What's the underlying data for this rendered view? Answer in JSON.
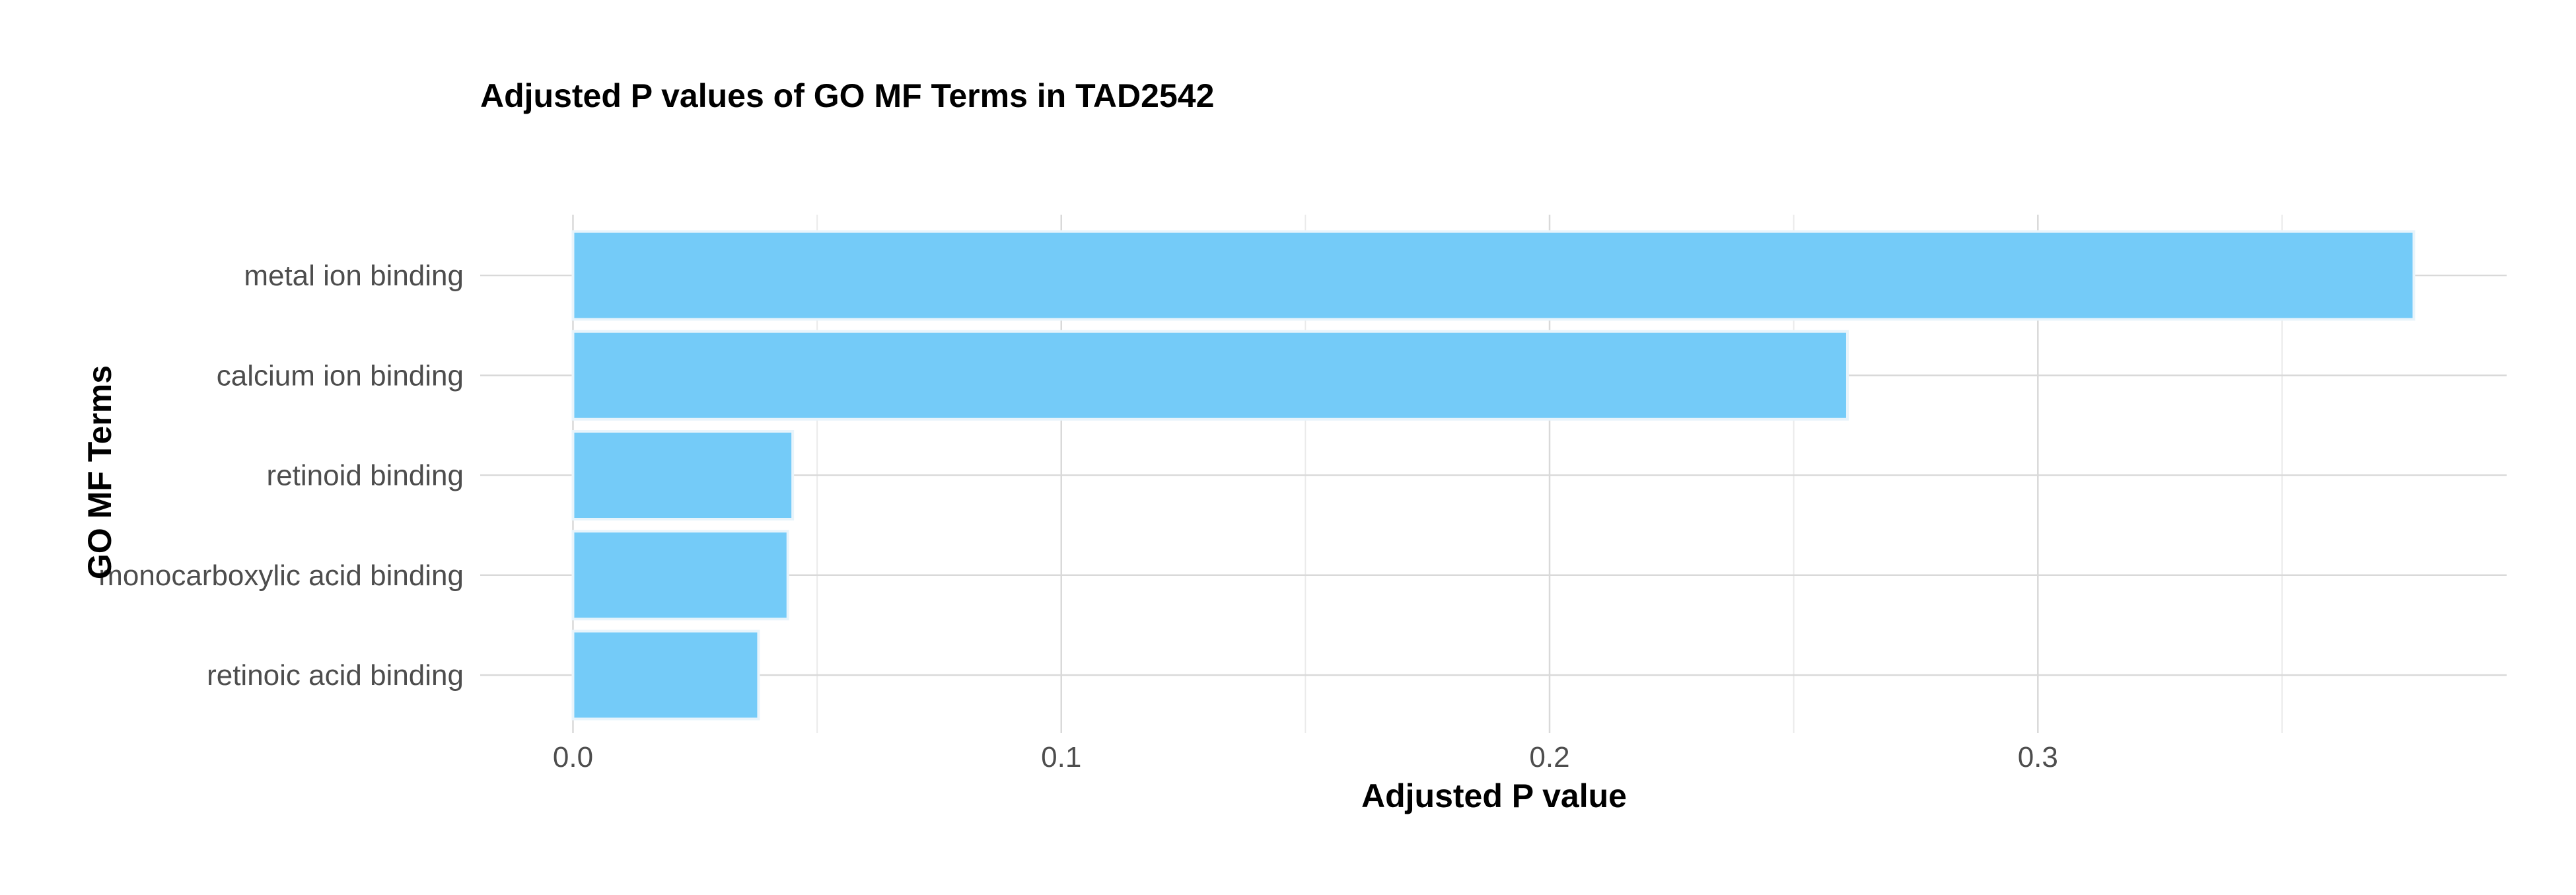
{
  "chart_data": {
    "type": "bar",
    "orientation": "horizontal",
    "title": "Adjusted P values of GO MF Terms in TAD2542",
    "xlabel": "Adjusted P value",
    "ylabel": "GO MF Terms",
    "categories": [
      "metal ion binding",
      "calcium ion binding",
      "retinoid binding",
      "monocarboxylic acid binding",
      "retinoic acid binding"
    ],
    "values": [
      0.377,
      0.261,
      0.045,
      0.044,
      0.038
    ],
    "xlim": [
      -0.019,
      0.396
    ],
    "xticks": [
      0.0,
      0.1,
      0.2,
      0.3
    ],
    "xtick_labels": [
      "0.0",
      "0.1",
      "0.2",
      "0.3"
    ],
    "minor_xticks": [
      0.05,
      0.15,
      0.25,
      0.35
    ],
    "grid": true,
    "legend": "none",
    "colors": {
      "bar_fill": "#74cbf8",
      "bar_outline": "#e8f4fb",
      "grid_major": "#d9d9d9",
      "grid_minor": "#ebebeb",
      "tick_label": "#4d4d4d",
      "title": "#000000"
    }
  }
}
